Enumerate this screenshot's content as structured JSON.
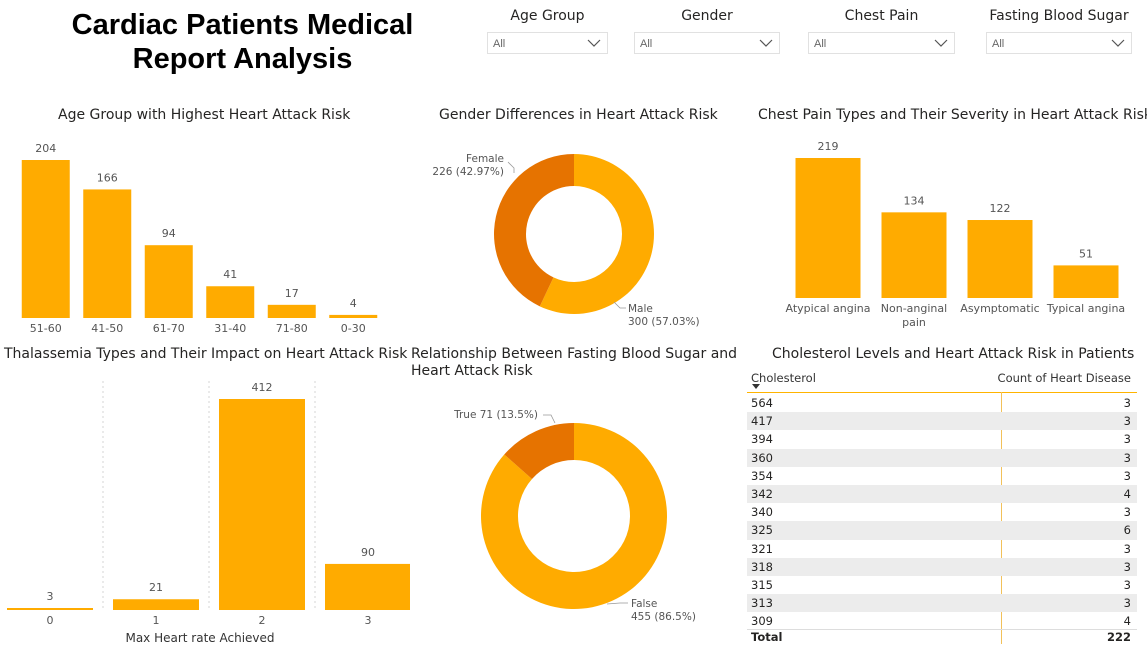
{
  "report_title": "Cardiac Patients Medical Report Analysis",
  "accent_color": "#FFAB00",
  "accent_dark": "#E67300",
  "slicers": [
    {
      "label": "Age Group",
      "value": "All"
    },
    {
      "label": "Gender",
      "value": "All"
    },
    {
      "label": "Chest Pain",
      "value": "All"
    },
    {
      "label": "Fasting Blood Sugar",
      "value": "All"
    }
  ],
  "chart_data": [
    {
      "id": "age",
      "type": "bar",
      "title": "Age Group with Highest Heart Attack Risk",
      "categories": [
        "51-60",
        "41-50",
        "61-70",
        "31-40",
        "71-80",
        "0-30"
      ],
      "values": [
        204,
        166,
        94,
        41,
        17,
        4
      ],
      "ylim": [
        0,
        204
      ]
    },
    {
      "id": "gender",
      "type": "pie",
      "title": "Gender Differences in Heart Attack Risk",
      "slices": [
        {
          "label": "Male",
          "value": 300,
          "text": "300 (57.03%)",
          "color": "#FFAB00"
        },
        {
          "label": "Female",
          "value": 226,
          "text": "226 (42.97%)",
          "color": "#E67300"
        }
      ]
    },
    {
      "id": "chestpain",
      "type": "bar",
      "title": "Chest Pain Types and Their Severity in Heart Attack Risk",
      "categories": [
        "Atypical angina",
        "Non-anginal pain",
        "Asymptomatic",
        "Typical angina"
      ],
      "values": [
        219,
        134,
        122,
        51
      ],
      "ylim": [
        0,
        219
      ]
    },
    {
      "id": "thal",
      "type": "bar",
      "title": "Thalassemia Types and Their Impact on Heart Attack Risk",
      "xlabel": "Max Heart rate Achieved",
      "categories": [
        "0",
        "1",
        "2",
        "3"
      ],
      "values": [
        3,
        21,
        412,
        90
      ],
      "ylim": [
        0,
        412
      ]
    },
    {
      "id": "fbs",
      "type": "pie",
      "title": "Relationship Between Fasting Blood Sugar and Heart Attack Risk",
      "slices": [
        {
          "label": "False",
          "value": 455,
          "text": "455 (86.5%)",
          "color": "#FFAB00"
        },
        {
          "label": "True",
          "value": 71,
          "text": "71 (13.5%)",
          "color": "#E67300"
        }
      ]
    },
    {
      "id": "chol",
      "type": "table",
      "title": "Cholesterol Levels and Heart Attack Risk in Patients",
      "columns": [
        "Cholesterol",
        "Count of Heart Disease"
      ],
      "rows": [
        [
          "564",
          "3"
        ],
        [
          "417",
          "3"
        ],
        [
          "394",
          "3"
        ],
        [
          "360",
          "3"
        ],
        [
          "354",
          "3"
        ],
        [
          "342",
          "4"
        ],
        [
          "340",
          "3"
        ],
        [
          "325",
          "6"
        ],
        [
          "321",
          "3"
        ],
        [
          "318",
          "3"
        ],
        [
          "315",
          "3"
        ],
        [
          "313",
          "3"
        ],
        [
          "309",
          "4"
        ]
      ],
      "total": [
        "Total",
        "222"
      ]
    }
  ]
}
